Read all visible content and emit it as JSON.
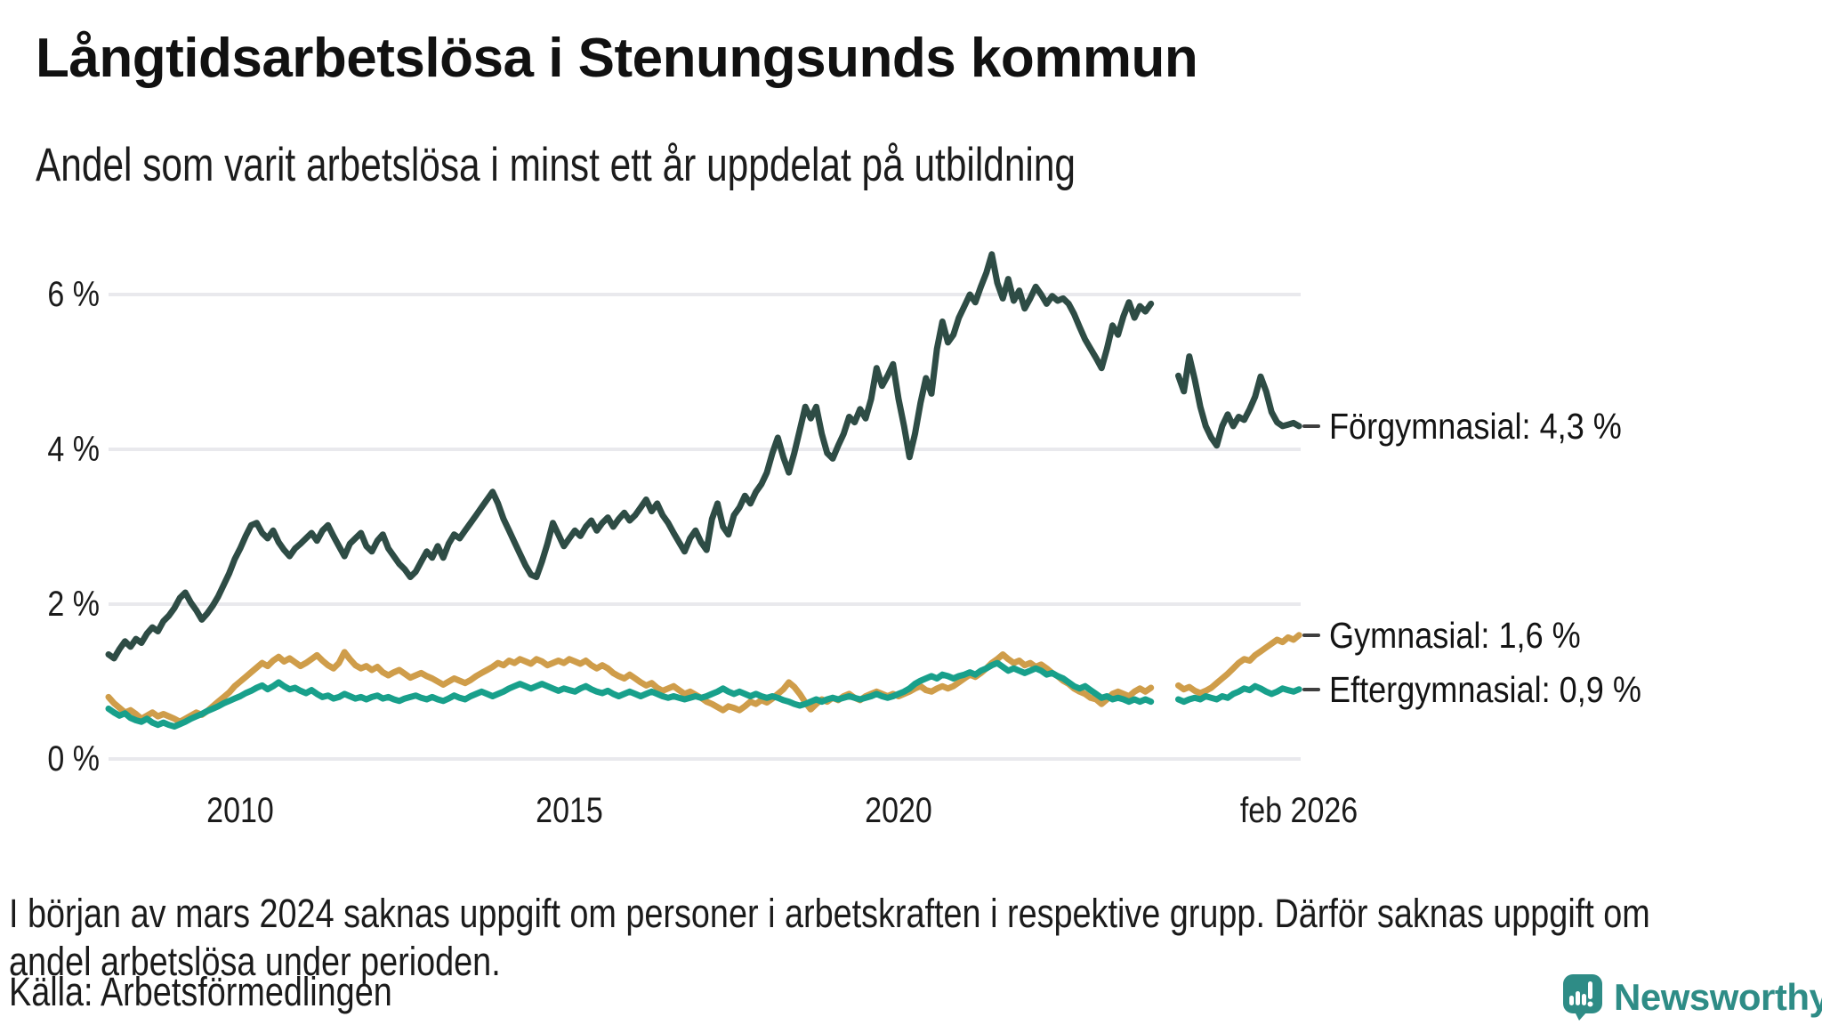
{
  "header": {
    "title": "Långtidsarbetslösa i Stenungsunds kommun",
    "subtitle": "Andel som varit arbetslösa i minst ett år uppdelat på utbildning"
  },
  "chart_data": {
    "type": "line",
    "title": "Långtidsarbetslösa i Stenungsunds kommun",
    "subtitle": "Andel som varit arbetslösa i minst ett år uppdelat på utbildning",
    "x_unit": "month",
    "x_start": "2008-01",
    "x_end": "2026-02",
    "data_gap": {
      "from": "2023-12",
      "to": "2024-03"
    },
    "xlim": [
      2008.0,
      2026.17
    ],
    "ylim": [
      0,
      7.4
    ],
    "grid": true,
    "legend_position": "right-of-line-ends",
    "y_ticks": [
      {
        "label": "0 %",
        "value": 0
      },
      {
        "label": "2 %",
        "value": 2
      },
      {
        "label": "4 %",
        "value": 4
      },
      {
        "label": "6 %",
        "value": 6
      }
    ],
    "x_ticks": [
      {
        "label": "2010",
        "year": 2010
      },
      {
        "label": "2015",
        "year": 2015
      },
      {
        "label": "2020",
        "year": 2020
      },
      {
        "label": "feb 2026",
        "year": 2026.083
      }
    ],
    "series": [
      {
        "name": "Förgymnasial",
        "color": "#2e4c45",
        "end_label": "Förgymnasial: 4,3 %",
        "end_value": 4.3,
        "values": [
          1.35,
          1.3,
          1.42,
          1.52,
          1.45,
          1.55,
          1.5,
          1.62,
          1.7,
          1.65,
          1.78,
          1.85,
          1.95,
          2.08,
          2.15,
          2.02,
          1.92,
          1.8,
          1.88,
          1.98,
          2.1,
          2.25,
          2.4,
          2.58,
          2.72,
          2.88,
          3.02,
          3.05,
          2.92,
          2.85,
          2.95,
          2.8,
          2.7,
          2.62,
          2.72,
          2.78,
          2.85,
          2.92,
          2.82,
          2.95,
          3.02,
          2.88,
          2.75,
          2.62,
          2.78,
          2.85,
          2.92,
          2.75,
          2.68,
          2.82,
          2.9,
          2.72,
          2.62,
          2.52,
          2.45,
          2.35,
          2.42,
          2.55,
          2.68,
          2.6,
          2.75,
          2.6,
          2.78,
          2.9,
          2.85,
          2.95,
          3.05,
          3.15,
          3.25,
          3.35,
          3.45,
          3.3,
          3.1,
          2.95,
          2.8,
          2.65,
          2.5,
          2.38,
          2.35,
          2.55,
          2.78,
          3.05,
          2.9,
          2.75,
          2.85,
          2.95,
          2.88,
          3.0,
          3.08,
          2.95,
          3.05,
          3.12,
          3.0,
          3.1,
          3.18,
          3.08,
          3.15,
          3.25,
          3.35,
          3.2,
          3.3,
          3.15,
          3.05,
          2.92,
          2.8,
          2.68,
          2.85,
          2.95,
          2.8,
          2.7,
          3.1,
          3.3,
          3.0,
          2.9,
          3.15,
          3.25,
          3.4,
          3.3,
          3.45,
          3.55,
          3.7,
          3.95,
          4.15,
          3.9,
          3.7,
          3.95,
          4.25,
          4.55,
          4.4,
          4.55,
          4.2,
          3.95,
          3.88,
          4.05,
          4.2,
          4.42,
          4.35,
          4.52,
          4.4,
          4.65,
          5.05,
          4.82,
          4.95,
          5.1,
          4.65,
          4.3,
          3.9,
          4.2,
          4.6,
          4.92,
          4.72,
          5.3,
          5.65,
          5.38,
          5.48,
          5.7,
          5.85,
          6.0,
          5.9,
          6.1,
          6.28,
          6.52,
          6.15,
          5.95,
          6.2,
          5.92,
          6.05,
          5.82,
          5.95,
          6.1,
          6.0,
          5.88,
          5.98,
          5.92,
          5.95,
          5.88,
          5.75,
          5.58,
          5.42,
          5.3,
          5.18,
          5.05,
          5.3,
          5.6,
          5.48,
          5.72,
          5.9,
          5.7,
          5.85,
          5.78,
          5.88,
          null,
          null,
          null,
          null,
          4.95,
          4.75,
          5.2,
          4.9,
          4.55,
          4.3,
          4.15,
          4.05,
          4.3,
          4.45,
          4.3,
          4.42,
          4.38,
          4.52,
          4.68,
          4.94,
          4.75,
          4.48,
          4.35,
          4.3,
          4.32,
          4.34,
          4.3
        ]
      },
      {
        "name": "Gymnasial",
        "color": "#cf9d4a",
        "end_label": "Gymnasial: 1,6 %",
        "end_value": 1.6,
        "values": [
          0.8,
          0.72,
          0.66,
          0.6,
          0.63,
          0.58,
          0.52,
          0.56,
          0.6,
          0.55,
          0.58,
          0.55,
          0.52,
          0.48,
          0.52,
          0.56,
          0.6,
          0.57,
          0.62,
          0.68,
          0.74,
          0.8,
          0.86,
          0.94,
          1.0,
          1.06,
          1.12,
          1.18,
          1.24,
          1.2,
          1.27,
          1.32,
          1.26,
          1.3,
          1.25,
          1.2,
          1.24,
          1.29,
          1.34,
          1.27,
          1.21,
          1.17,
          1.24,
          1.38,
          1.29,
          1.21,
          1.17,
          1.2,
          1.15,
          1.19,
          1.12,
          1.08,
          1.12,
          1.15,
          1.1,
          1.05,
          1.08,
          1.11,
          1.07,
          1.04,
          1.0,
          0.96,
          1.0,
          1.04,
          1.01,
          0.98,
          1.02,
          1.07,
          1.11,
          1.15,
          1.19,
          1.24,
          1.21,
          1.27,
          1.24,
          1.29,
          1.26,
          1.23,
          1.29,
          1.26,
          1.21,
          1.24,
          1.27,
          1.24,
          1.29,
          1.26,
          1.23,
          1.27,
          1.21,
          1.17,
          1.21,
          1.17,
          1.11,
          1.07,
          1.04,
          1.09,
          1.04,
          0.99,
          0.95,
          0.98,
          0.92,
          0.88,
          0.91,
          0.94,
          0.89,
          0.84,
          0.87,
          0.83,
          0.79,
          0.74,
          0.71,
          0.67,
          0.63,
          0.68,
          0.66,
          0.63,
          0.68,
          0.74,
          0.71,
          0.76,
          0.73,
          0.78,
          0.84,
          0.9,
          0.99,
          0.93,
          0.84,
          0.73,
          0.64,
          0.71,
          0.77,
          0.74,
          0.79,
          0.76,
          0.81,
          0.84,
          0.79,
          0.76,
          0.81,
          0.84,
          0.87,
          0.84,
          0.81,
          0.84,
          0.81,
          0.84,
          0.87,
          0.91,
          0.94,
          0.89,
          0.87,
          0.91,
          0.94,
          0.91,
          0.94,
          0.99,
          1.04,
          1.09,
          1.06,
          1.11,
          1.17,
          1.24,
          1.29,
          1.35,
          1.29,
          1.24,
          1.27,
          1.21,
          1.24,
          1.19,
          1.22,
          1.17,
          1.11,
          1.07,
          1.01,
          0.97,
          0.91,
          0.87,
          0.84,
          0.79,
          0.77,
          0.71,
          0.77,
          0.84,
          0.87,
          0.84,
          0.81,
          0.87,
          0.91,
          0.87,
          0.92,
          null,
          null,
          null,
          null,
          0.95,
          0.9,
          0.93,
          0.88,
          0.85,
          0.88,
          0.92,
          0.98,
          1.04,
          1.1,
          1.17,
          1.24,
          1.29,
          1.27,
          1.34,
          1.39,
          1.44,
          1.49,
          1.54,
          1.51,
          1.57,
          1.54,
          1.6
        ]
      },
      {
        "name": "Eftergymnasial",
        "color": "#18a08b",
        "end_label": "Eftergymnasial: 0,9 %",
        "end_value": 0.9,
        "values": [
          0.65,
          0.6,
          0.56,
          0.59,
          0.53,
          0.5,
          0.48,
          0.52,
          0.47,
          0.44,
          0.47,
          0.44,
          0.42,
          0.45,
          0.48,
          0.52,
          0.55,
          0.58,
          0.62,
          0.65,
          0.68,
          0.72,
          0.75,
          0.78,
          0.81,
          0.85,
          0.88,
          0.92,
          0.95,
          0.9,
          0.94,
          0.99,
          0.94,
          0.9,
          0.92,
          0.88,
          0.85,
          0.89,
          0.84,
          0.8,
          0.82,
          0.78,
          0.8,
          0.84,
          0.81,
          0.78,
          0.8,
          0.77,
          0.8,
          0.82,
          0.78,
          0.8,
          0.77,
          0.75,
          0.78,
          0.8,
          0.82,
          0.79,
          0.77,
          0.8,
          0.77,
          0.75,
          0.78,
          0.82,
          0.79,
          0.77,
          0.81,
          0.84,
          0.87,
          0.84,
          0.81,
          0.84,
          0.87,
          0.91,
          0.94,
          0.97,
          0.94,
          0.91,
          0.94,
          0.97,
          0.94,
          0.91,
          0.88,
          0.91,
          0.89,
          0.87,
          0.91,
          0.94,
          0.9,
          0.87,
          0.85,
          0.88,
          0.84,
          0.81,
          0.84,
          0.87,
          0.84,
          0.81,
          0.84,
          0.87,
          0.84,
          0.81,
          0.79,
          0.81,
          0.79,
          0.77,
          0.79,
          0.81,
          0.79,
          0.81,
          0.84,
          0.87,
          0.91,
          0.87,
          0.84,
          0.87,
          0.84,
          0.81,
          0.84,
          0.81,
          0.79,
          0.81,
          0.79,
          0.76,
          0.74,
          0.71,
          0.69,
          0.71,
          0.74,
          0.77,
          0.74,
          0.77,
          0.79,
          0.77,
          0.79,
          0.81,
          0.79,
          0.77,
          0.79,
          0.81,
          0.84,
          0.81,
          0.79,
          0.81,
          0.84,
          0.87,
          0.91,
          0.97,
          1.01,
          1.04,
          1.07,
          1.04,
          1.09,
          1.07,
          1.04,
          1.07,
          1.09,
          1.12,
          1.09,
          1.14,
          1.17,
          1.21,
          1.24,
          1.19,
          1.14,
          1.17,
          1.14,
          1.11,
          1.14,
          1.17,
          1.14,
          1.09,
          1.11,
          1.07,
          1.04,
          0.99,
          0.94,
          0.91,
          0.94,
          0.89,
          0.84,
          0.79,
          0.81,
          0.77,
          0.79,
          0.77,
          0.74,
          0.77,
          0.74,
          0.77,
          0.74,
          null,
          null,
          null,
          null,
          0.77,
          0.74,
          0.77,
          0.79,
          0.77,
          0.81,
          0.79,
          0.77,
          0.81,
          0.79,
          0.84,
          0.87,
          0.91,
          0.89,
          0.94,
          0.91,
          0.87,
          0.84,
          0.87,
          0.91,
          0.89,
          0.87,
          0.9
        ]
      }
    ],
    "colors": {
      "grid": "#e9e9ed",
      "label_dash": "#3f3f3f"
    }
  },
  "footnote": {
    "line1": "I början av mars 2024 saknas uppgift om personer i arbetskraften i respektive grupp. Därför saknas uppgift om",
    "line2": "andel arbetslösa under perioden."
  },
  "source": "Källa: Arbetsförmedlingen",
  "branding": {
    "name": "Newsworthy",
    "color": "#2e8c86"
  }
}
